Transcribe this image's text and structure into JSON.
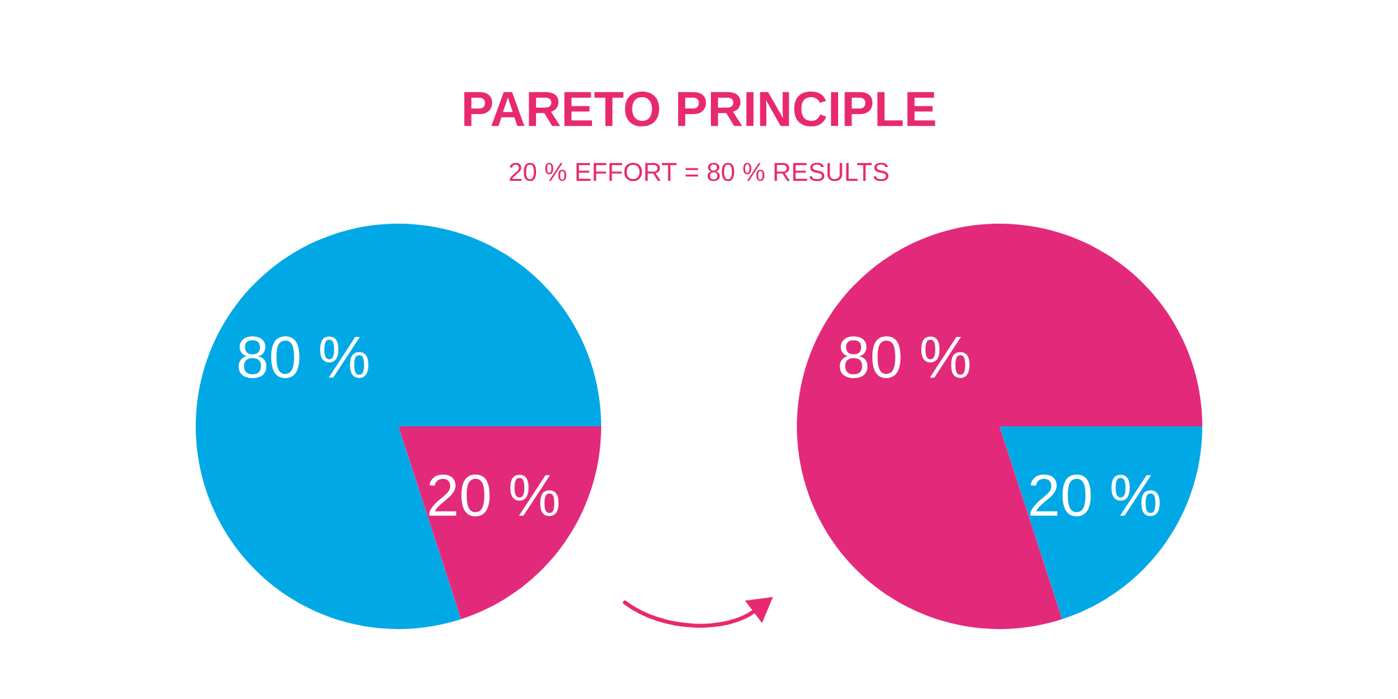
{
  "chart_data": [
    {
      "type": "pie",
      "title": "PARETO PRINCIPLE",
      "subtitle": "20 % EFFORT = 80 % RESULTS",
      "categories": [
        null,
        null
      ],
      "values": [
        80,
        20
      ],
      "colors": [
        "#00a8e6",
        "#e3297a"
      ],
      "value_labels": [
        "80 %",
        "20 %"
      ]
    },
    {
      "type": "pie",
      "categories": [
        null,
        null
      ],
      "values": [
        80,
        20
      ],
      "colors": [
        "#e3297a",
        "#00a8e6"
      ],
      "value_labels": [
        "80 %",
        "20 %"
      ]
    }
  ]
}
